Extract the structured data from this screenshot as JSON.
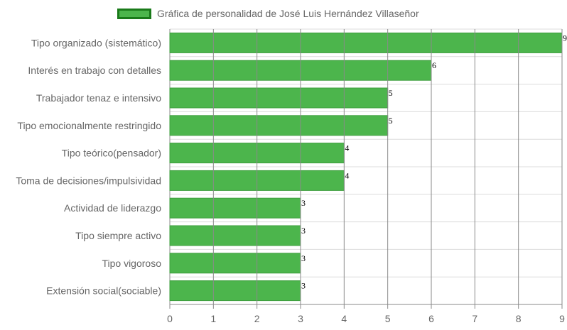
{
  "chart_data": {
    "type": "bar",
    "orientation": "horizontal",
    "title": "",
    "xlabel": "",
    "ylabel": "",
    "categories": [
      "Tipo organizado (sistemático)",
      "Interés en trabajo con detalles",
      "Trabajador tenaz e intensivo",
      "Tipo emocionalmente restringido",
      "Tipo teórico(pensador)",
      "Toma de decisiones/impulsividad",
      "Actividad de liderazgo",
      "Tipo siempre activo",
      "Tipo vigoroso",
      "Extensión social(sociable)"
    ],
    "series": [
      {
        "name": "Gráfica de personalidad de José Luis Hernández Villaseñor",
        "values": [
          9,
          6,
          5,
          5,
          4,
          4,
          3,
          3,
          3,
          3
        ]
      }
    ],
    "xlim": [
      0,
      9
    ],
    "xticks": [
      0,
      1,
      2,
      3,
      4,
      5,
      6,
      7,
      8,
      9
    ],
    "grid": true,
    "legend_position": "top",
    "data_labels": true,
    "colors": {
      "bar_fill": "#4cb54c",
      "bar_border": "#3e9f3e",
      "legend_border": "#1a7a1a",
      "grid_vertical": "#8a8a8a",
      "grid_horizontal": "#dcdcdc",
      "text": "#666666"
    }
  }
}
